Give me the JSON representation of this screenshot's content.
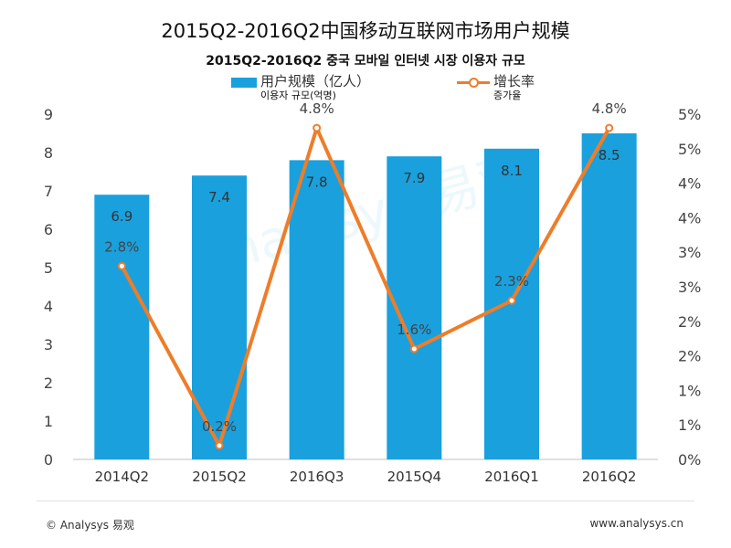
{
  "chart_data": {
    "type": "bar",
    "title": "2015Q2-2016Q2中国移动互联网市场用户规模",
    "subtitle": "2015Q2-2016Q2 중국 모바일 인터넷 시장 이용자 규모",
    "categories": [
      "2014Q2",
      "2015Q2",
      "2016Q3",
      "2015Q4",
      "2016Q1",
      "2016Q2"
    ],
    "series": [
      {
        "name": "用户规模（亿人）",
        "name_sub": "이용자 규모(억명)",
        "type": "bar",
        "axis": "left",
        "color": "#1aa0dd",
        "values": [
          6.9,
          7.4,
          7.8,
          7.9,
          8.1,
          8.5
        ],
        "labels": [
          "6.9",
          "7.4",
          "7.8",
          "7.9",
          "8.1",
          "8.5"
        ]
      },
      {
        "name": "增长率",
        "name_sub": "증가율",
        "type": "line",
        "axis": "right",
        "color": "#ee7d29",
        "values": [
          2.8,
          0.2,
          4.8,
          1.6,
          2.3,
          4.8
        ],
        "labels": [
          "2.8%",
          "0.2%",
          "4.8%",
          "1.6%",
          "2.3%",
          "4.8%"
        ]
      }
    ],
    "y_left": {
      "ylim": [
        0,
        9
      ],
      "ticks": [
        "0",
        "1",
        "2",
        "3",
        "4",
        "5",
        "6",
        "7",
        "8",
        "9"
      ]
    },
    "y_right": {
      "ylim": [
        0,
        5
      ],
      "ticks": [
        "0%",
        "1%",
        "1%",
        "2%",
        "2%",
        "3%",
        "3%",
        "4%",
        "4%",
        "5%",
        "5%"
      ]
    },
    "grid": false,
    "legend": "top"
  },
  "watermark": "Analysys 易观",
  "footer": {
    "left": "© Analysys 易观",
    "right": "www.analysys.cn"
  }
}
